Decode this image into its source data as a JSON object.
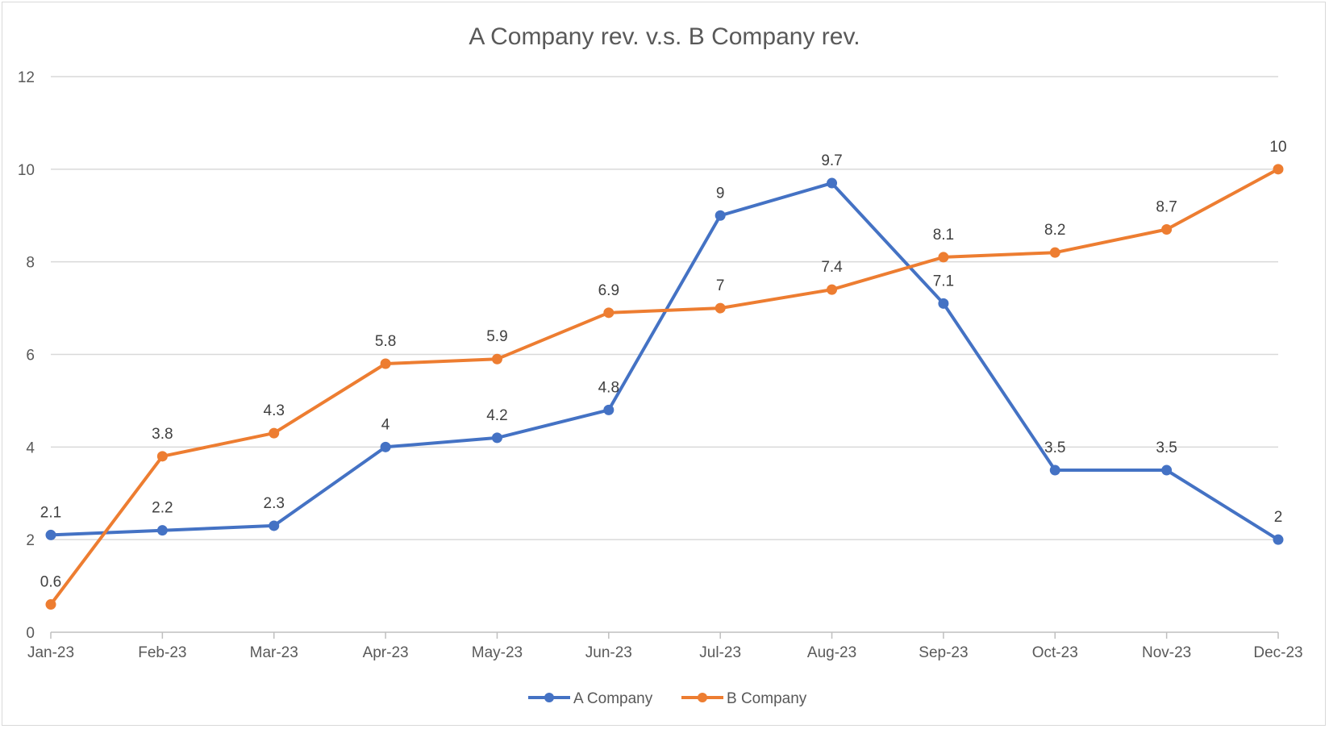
{
  "chart_data": {
    "type": "line",
    "title": "A Company rev. v.s. B Company rev.",
    "xlabel": "",
    "ylabel": "",
    "categories": [
      "Jan-23",
      "Feb-23",
      "Mar-23",
      "Apr-23",
      "May-23",
      "Jun-23",
      "Jul-23",
      "Aug-23",
      "Sep-23",
      "Oct-23",
      "Nov-23",
      "Dec-23"
    ],
    "series": [
      {
        "name": "A Company",
        "color": "#4472C4",
        "values": [
          2.1,
          2.2,
          2.3,
          4,
          4.2,
          4.8,
          9,
          9.7,
          7.1,
          3.5,
          3.5,
          2
        ]
      },
      {
        "name": "B Company",
        "color": "#ED7D31",
        "values": [
          0.6,
          3.8,
          4.3,
          5.8,
          5.9,
          6.9,
          7,
          7.4,
          8.1,
          8.2,
          8.7,
          10
        ]
      }
    ],
    "ylim": [
      0,
      12
    ],
    "yticks": [
      "0",
      "2",
      "4",
      "6",
      "8",
      "10",
      "12"
    ],
    "grid": true,
    "legend": "bottom"
  }
}
